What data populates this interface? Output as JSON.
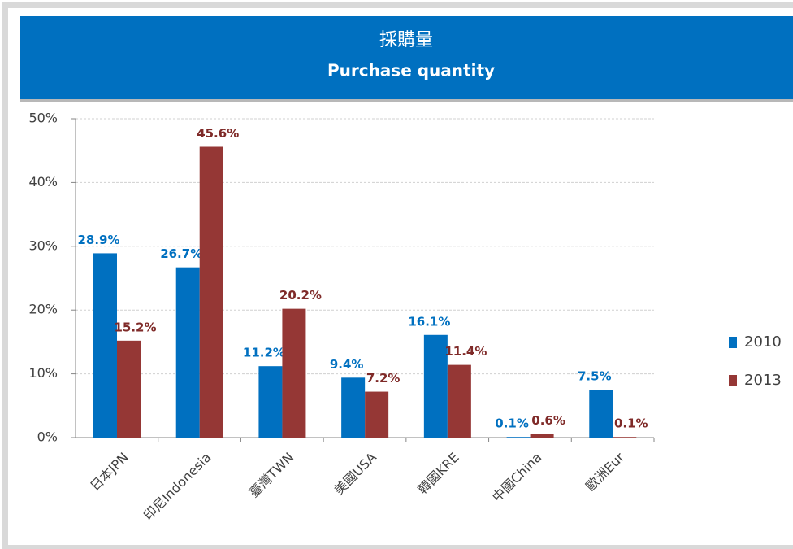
{
  "chart_data": {
    "type": "bar",
    "title": "採購量",
    "subtitle": "Purchase quantity",
    "categories": [
      "日本JPN",
      "印尼Indonesia",
      "臺灣TWN",
      "美國USA",
      "韓國KRE",
      "中國China",
      "歐洲Eur"
    ],
    "series": [
      {
        "name": "2010",
        "color": "#0070c0",
        "values": [
          28.9,
          26.7,
          11.2,
          9.4,
          16.1,
          0.1,
          7.5
        ],
        "value_labels": [
          "28.9%",
          "26.7%",
          "11.2%",
          "9.4%",
          "16.1%",
          "0.1%",
          "7.5%"
        ]
      },
      {
        "name": "2013",
        "color": "#953735",
        "values": [
          15.2,
          45.6,
          20.2,
          7.2,
          11.4,
          0.6,
          0.1
        ],
        "value_labels": [
          "15.2%",
          "45.6%",
          "20.2%",
          "7.2%",
          "11.4%",
          "0.6%",
          "0.1%"
        ]
      }
    ],
    "ylim": [
      0,
      50
    ],
    "yticks": [
      {
        "value": 0,
        "label": "0%"
      },
      {
        "value": 10,
        "label": "10%"
      },
      {
        "value": 20,
        "label": "20%"
      },
      {
        "value": 30,
        "label": "30%"
      },
      {
        "value": 40,
        "label": "40%"
      },
      {
        "value": 50,
        "label": "50%"
      }
    ],
    "grid": true,
    "legend": "right"
  }
}
